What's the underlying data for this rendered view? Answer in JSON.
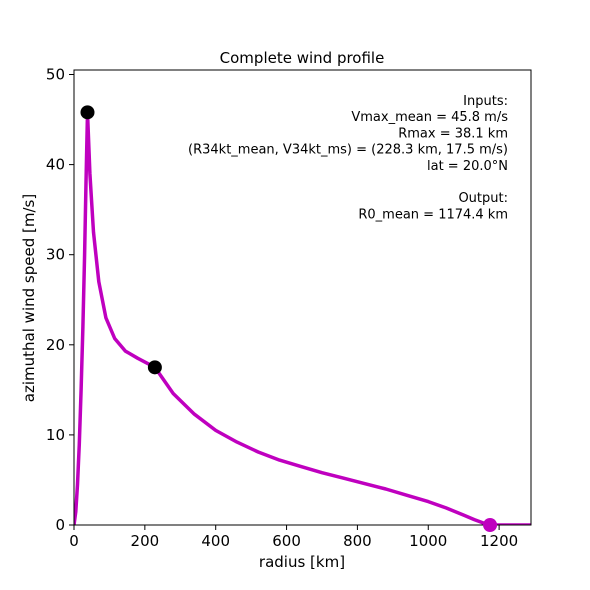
{
  "chart_data": {
    "type": "line",
    "title": "Complete wind profile",
    "xlabel": "radius [km]",
    "ylabel": "azimuthal wind speed [m/s]",
    "xlim": [
      0,
      1290
    ],
    "ylim": [
      0,
      50.5
    ],
    "xticks": [
      0,
      200,
      400,
      600,
      800,
      1000,
      1200
    ],
    "yticks": [
      0,
      10,
      20,
      30,
      40,
      50
    ],
    "grid": false,
    "series": [
      {
        "color": "#bf00bf",
        "x": [
          0,
          5,
          10,
          15,
          20,
          25,
          30,
          34,
          38.1,
          45,
          55,
          70,
          90,
          115,
          145,
          180,
          228.3,
          280,
          340,
          400,
          460,
          520,
          580,
          640,
          700,
          760,
          820,
          880,
          940,
          1000,
          1050,
          1100,
          1130,
          1150,
          1165,
          1174.4,
          1200,
          1290
        ],
        "y": [
          0,
          1.5,
          4.5,
          9,
          15,
          22,
          30,
          38,
          45.8,
          39,
          32.5,
          27,
          23,
          20.7,
          19.3,
          18.5,
          17.5,
          14.6,
          12.3,
          10.5,
          9.2,
          8.1,
          7.2,
          6.5,
          5.8,
          5.2,
          4.6,
          4.0,
          3.3,
          2.6,
          1.9,
          1.1,
          0.6,
          0.3,
          0.1,
          0,
          0,
          0
        ]
      }
    ],
    "markers": [
      {
        "x": 38.1,
        "y": 45.8,
        "color": "#000000"
      },
      {
        "x": 228.3,
        "y": 17.5,
        "color": "#000000"
      },
      {
        "x": 1174.4,
        "y": 0,
        "color": "#bf00bf"
      }
    ],
    "annotation": [
      "Inputs:",
      "Vmax_mean = 45.8 m/s",
      "Rmax = 38.1 km",
      "(R34kt_mean, V34kt_ms) = (228.3 km, 17.5 m/s)",
      "lat = 20.0°N",
      "",
      "Output:",
      "R0_mean = 1174.4 km"
    ]
  }
}
